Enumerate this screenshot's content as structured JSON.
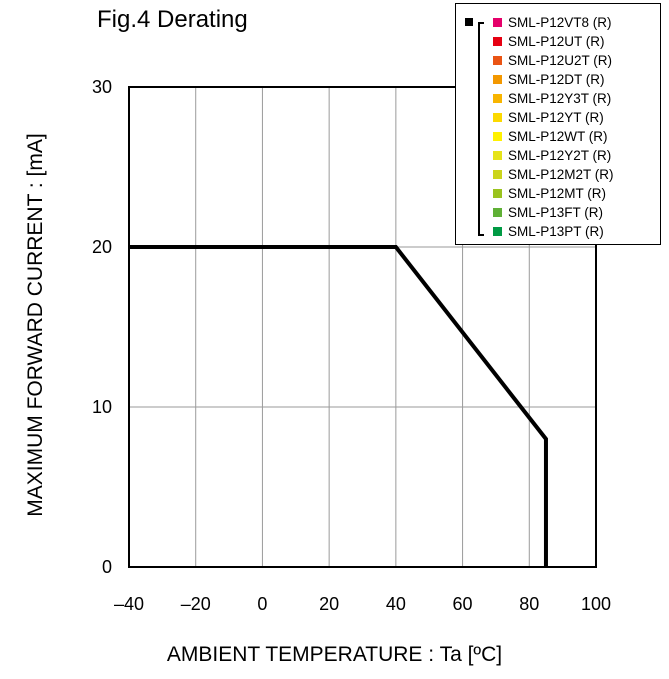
{
  "chart_data": {
    "type": "line",
    "title": "Fig.4 Derating",
    "xlabel": "AMBIENT TEMPERATURE : Ta [ºC]",
    "ylabel": "MAXIMUM FORWARD CURRENT : [mA]",
    "xlim": [
      -40,
      100
    ],
    "ylim": [
      0,
      30
    ],
    "x_ticks": [
      -40,
      -20,
      0,
      20,
      40,
      60,
      80,
      100
    ],
    "y_ticks": [
      0,
      10,
      20,
      30
    ],
    "x_tick_labels": [
      "–40",
      "–20",
      "0",
      "20",
      "40",
      "60",
      "80",
      "100"
    ],
    "y_tick_labels": [
      "0",
      "10",
      "20",
      "30"
    ],
    "grid": true,
    "legend_position": "top-right",
    "series": [
      {
        "x": [
          -40,
          40,
          85,
          85
        ],
        "y": [
          20,
          20,
          8,
          0
        ],
        "color": "#000000"
      }
    ],
    "legend": [
      {
        "label": "SML-P12VT8 (R)",
        "color": "#e5006a"
      },
      {
        "label": "SML-P12UT (R)",
        "color": "#e60012"
      },
      {
        "label": "SML-P12U2T (R)",
        "color": "#ea5414"
      },
      {
        "label": "SML-P12DT (R)",
        "color": "#f39800"
      },
      {
        "label": "SML-P12Y3T (R)",
        "color": "#f8b500"
      },
      {
        "label": "SML-P12YT (R)",
        "color": "#fcd900"
      },
      {
        "label": "SML-P12WT (R)",
        "color": "#fff100"
      },
      {
        "label": "SML-P12Y2T (R)",
        "color": "#e6e31a"
      },
      {
        "label": "SML-P12M2T (R)",
        "color": "#cbd51c"
      },
      {
        "label": "SML-P12MT (R)",
        "color": "#9ac31e"
      },
      {
        "label": "SML-P13FT (R)",
        "color": "#5fb036"
      },
      {
        "label": "SML-P13PT (R)",
        "color": "#009a44"
      }
    ]
  }
}
